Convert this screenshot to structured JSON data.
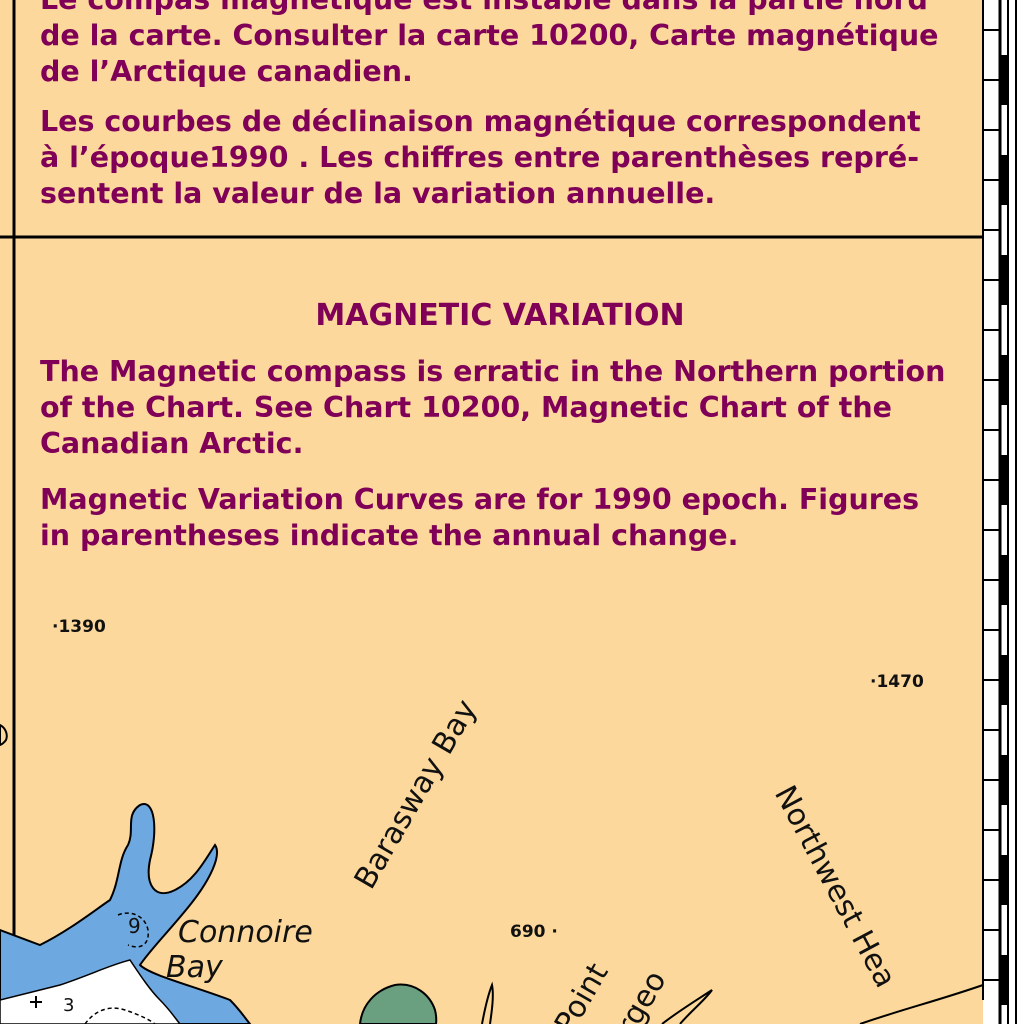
{
  "french_note": {
    "para1": "Le compas magnétique est instable dans la partie nord\nde la carte. Consulter la carte 10200, Carte magnétique\nde l’Arctique canadien.",
    "para2": "Les courbes de déclinaison magnétique correspondent\nà l’époque1990 . Les chiffres entre parenthèses repré-\nsentent la valeur de la variation annuelle."
  },
  "english_note": {
    "heading": "MAGNETIC VARIATION",
    "para1": "The Magnetic compass is erratic in the Northern portion\nof the Chart. See Chart 10200, Magnetic Chart of the\nCanadian Arctic.",
    "para2": "Magnetic Variation Curves are for 1990 epoch. Figures\nin parentheses indicate the annual change."
  },
  "soundings": {
    "s1390": "·1390",
    "s1470": "·1470",
    "s690": "690 ·",
    "depth9": "9",
    "depth3": "3"
  },
  "place_names": {
    "connoire_line1": "Connoire",
    "connoire_line2": "Bay",
    "barasway_bay": "Barasway Bay",
    "northwest_head": "Northwest Hea",
    "point": "Point",
    "sturgeo": "urgeo"
  },
  "colors": {
    "land": "#fcd89c",
    "text_magenta": "#800058",
    "shallow_water": "#6ea8e0",
    "very_shallow": "#ffffff",
    "vegetation": "#6aa080",
    "border": "#000000"
  }
}
